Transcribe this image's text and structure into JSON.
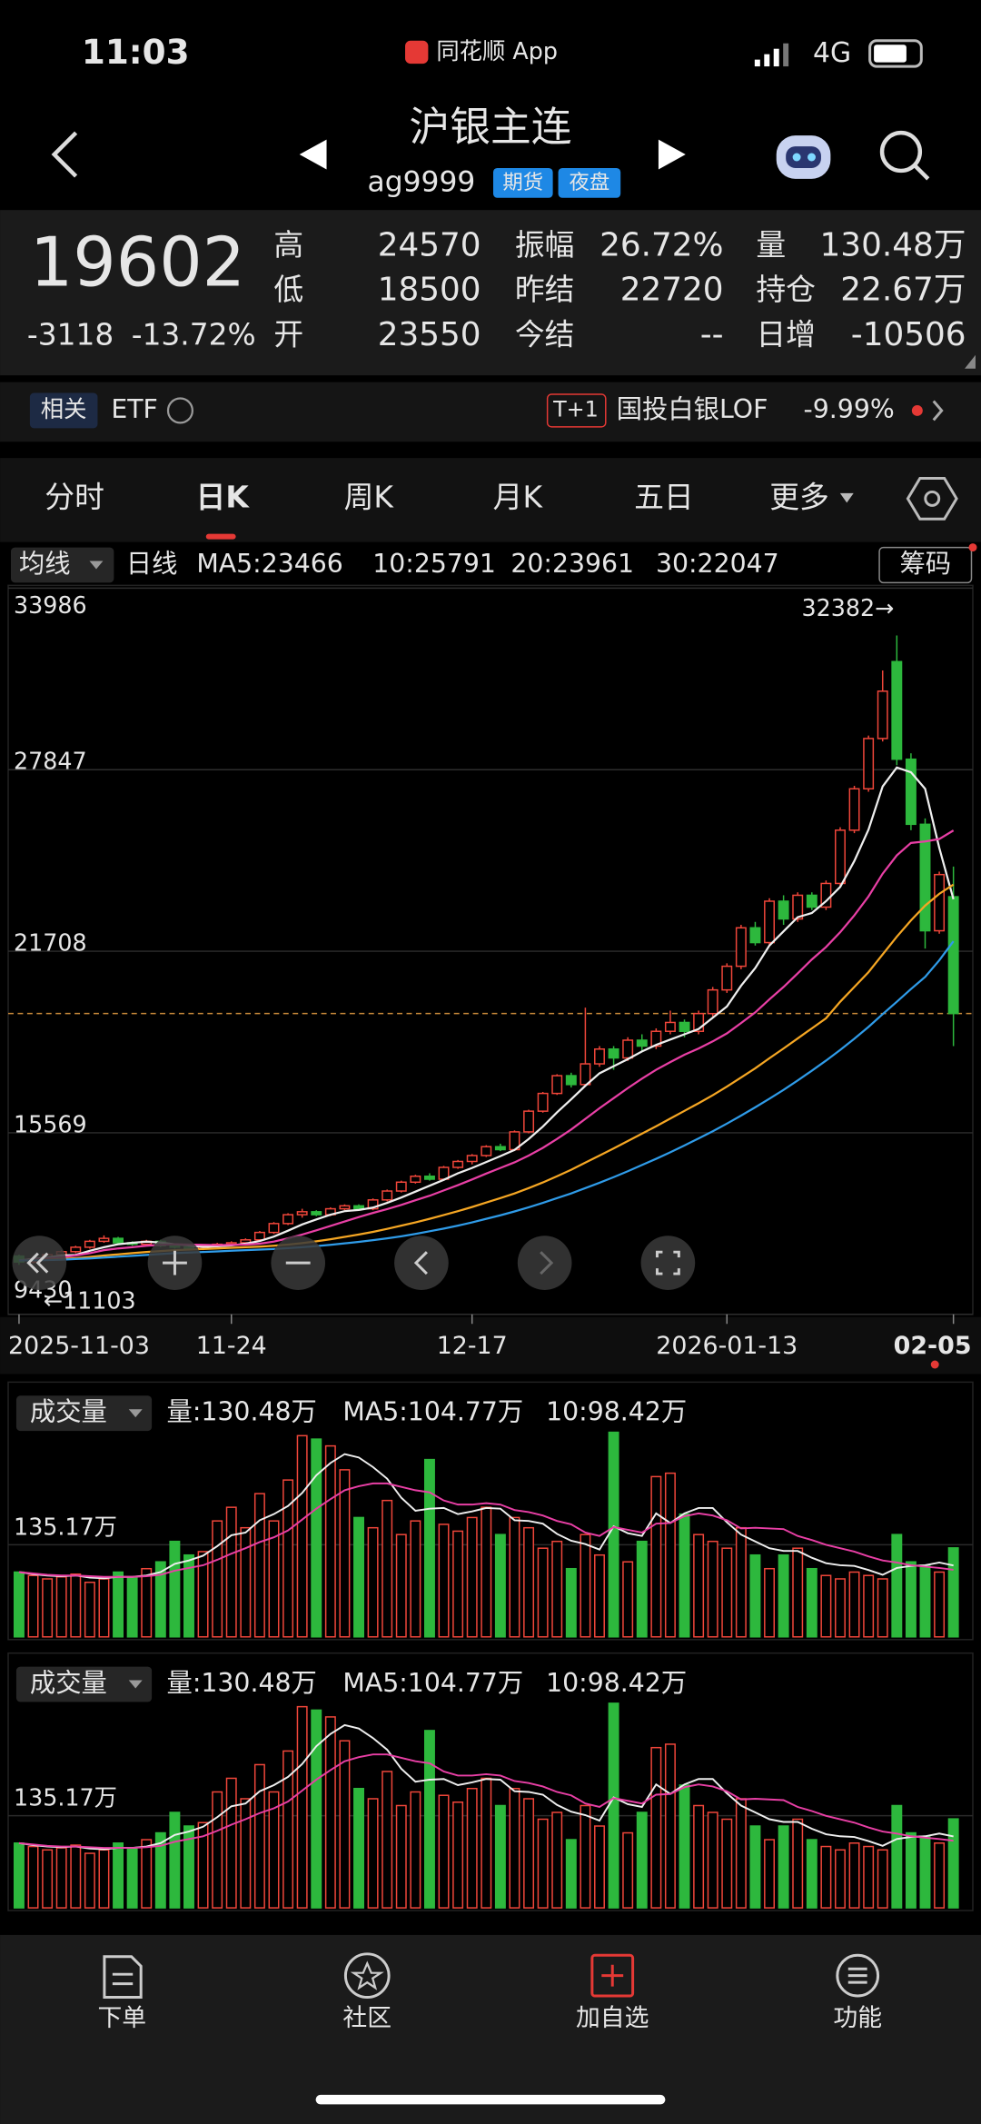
{
  "status": {
    "time": "11:03",
    "app": "同花顺 App",
    "network": "4G"
  },
  "header": {
    "title": "沪银主连",
    "code": "ag9999",
    "tags": [
      "期货",
      "夜盘"
    ]
  },
  "quote": {
    "price": "19602",
    "change": "-3118",
    "change_pct": "-13.72%",
    "fields": [
      {
        "label": "高",
        "value": "24570"
      },
      {
        "label": "低",
        "value": "18500"
      },
      {
        "label": "开",
        "value": "23550"
      },
      {
        "label": "振幅",
        "value": "26.72%"
      },
      {
        "label": "昨结",
        "value": "22720"
      },
      {
        "label": "今结",
        "value": "--"
      },
      {
        "label": "量",
        "value": "130.48万"
      },
      {
        "label": "持仓",
        "value": "22.67万"
      },
      {
        "label": "日增",
        "value": "-10506"
      }
    ]
  },
  "related": {
    "label": "相关",
    "etf": "ETF",
    "tag": "T+1",
    "fund": "国投白银LOF",
    "fund_change": "-9.99%"
  },
  "tabs": [
    "分时",
    "日K",
    "周K",
    "月K",
    "五日",
    "更多"
  ],
  "legend": {
    "ma_button": "均线",
    "period": "日线",
    "chips": "筹码"
  },
  "nav": [
    "下单",
    "社区",
    "加自选",
    "功能"
  ],
  "chart_data": [
    {
      "type": "candlestick",
      "up_color": "#f0463a",
      "down_color": "#2db83d",
      "categories": [
        "2025-11-03",
        null,
        null,
        null,
        null,
        null,
        null,
        null,
        null,
        null,
        null,
        null,
        null,
        null,
        null,
        "11-24",
        null,
        null,
        null,
        null,
        null,
        null,
        null,
        null,
        null,
        null,
        null,
        null,
        null,
        null,
        null,
        null,
        "12-17",
        null,
        null,
        null,
        null,
        null,
        null,
        null,
        null,
        null,
        null,
        null,
        null,
        null,
        null,
        null,
        null,
        null,
        "2026-01-13",
        null,
        null,
        null,
        null,
        null,
        null,
        null,
        null,
        null,
        null,
        null,
        null,
        null,
        null,
        null,
        "02-05"
      ],
      "open": [
        11400,
        11200,
        11300,
        11450,
        11550,
        11700,
        11900,
        12000,
        11850,
        11800,
        11900,
        11750,
        11700,
        11650,
        11750,
        11800,
        11850,
        11950,
        12200,
        12500,
        12800,
        12900,
        12800,
        13000,
        13100,
        13000,
        13300,
        13600,
        13900,
        14100,
        14000,
        14400,
        14600,
        14800,
        15100,
        15000,
        15600,
        16300,
        16900,
        17500,
        17200,
        17900,
        18400,
        18100,
        18700,
        18500,
        19000,
        19300,
        19000,
        19600,
        20400,
        21200,
        22500,
        22000,
        23400,
        22800,
        23600,
        23200,
        24000,
        25800,
        27200,
        28900,
        31500,
        28200,
        26000,
        22400,
        23550
      ],
      "high": [
        11450,
        11400,
        11500,
        11600,
        11750,
        11950,
        12100,
        12050,
        11900,
        11950,
        11950,
        11800,
        11750,
        11800,
        11850,
        11900,
        12000,
        12250,
        12550,
        12850,
        13000,
        12950,
        13050,
        13150,
        13150,
        13350,
        13650,
        13950,
        14150,
        14200,
        14450,
        14650,
        14850,
        15150,
        15200,
        15650,
        16350,
        16950,
        17550,
        17600,
        19800,
        18500,
        18500,
        18800,
        18900,
        19100,
        19700,
        19400,
        19700,
        20500,
        21300,
        22600,
        22700,
        23500,
        23600,
        23700,
        23700,
        24100,
        25900,
        27300,
        29000,
        31200,
        32382,
        28400,
        26200,
        24400,
        24570
      ],
      "low": [
        11103,
        11150,
        11250,
        11400,
        11500,
        11650,
        11850,
        11800,
        11750,
        11750,
        11700,
        11650,
        11600,
        11600,
        11700,
        11750,
        11800,
        11900,
        12150,
        12450,
        12700,
        12750,
        12750,
        12950,
        12950,
        12950,
        13250,
        13550,
        13850,
        13950,
        13950,
        14350,
        14500,
        14750,
        14950,
        14950,
        15550,
        16250,
        16850,
        17100,
        17150,
        17800,
        17700,
        18000,
        18300,
        18400,
        18900,
        18800,
        18900,
        19500,
        20300,
        21100,
        21900,
        21900,
        22600,
        22700,
        23100,
        23100,
        23900,
        25700,
        27100,
        28800,
        28000,
        25800,
        21800,
        22300,
        18500
      ],
      "close": [
        11200,
        11300,
        11450,
        11550,
        11700,
        11900,
        12000,
        11850,
        11800,
        11900,
        11750,
        11700,
        11650,
        11750,
        11800,
        11850,
        11950,
        12200,
        12500,
        12800,
        12900,
        12800,
        13000,
        13100,
        13000,
        13300,
        13600,
        13900,
        14100,
        14000,
        14400,
        14600,
        14800,
        15100,
        15000,
        15600,
        16300,
        16900,
        17500,
        17200,
        17900,
        18400,
        18100,
        18700,
        18500,
        19000,
        19300,
        19000,
        19600,
        20400,
        21200,
        22500,
        22000,
        23400,
        22800,
        23600,
        23200,
        24000,
        25800,
        27200,
        28900,
        30500,
        28200,
        26000,
        22400,
        24300,
        19602
      ],
      "series": [
        {
          "name": "MA5:23466",
          "color": "#eeeeee",
          "values": [
            11250,
            11300,
            11350,
            11420,
            11440,
            11580,
            11700,
            11800,
            11850,
            11890,
            11860,
            11800,
            11760,
            11710,
            11730,
            11760,
            11820,
            11910,
            12060,
            12260,
            12470,
            12640,
            12800,
            12920,
            12960,
            13040,
            13200,
            13380,
            13580,
            13780,
            13980,
            14200,
            14380,
            14580,
            14780,
            14990,
            15360,
            15780,
            16260,
            16700,
            17160,
            17580,
            17820,
            18060,
            18320,
            18540,
            18720,
            18900,
            19080,
            19460,
            19840,
            20540,
            21140,
            21900,
            22380,
            22860,
            23000,
            23400,
            23880,
            24760,
            25820,
            27280,
            27920,
            27760,
            27200,
            25200,
            23466
          ]
        },
        {
          "name": "10:25791",
          "color": "#e83fa5",
          "values": [
            11250,
            11280,
            11320,
            11360,
            11420,
            11500,
            11600,
            11660,
            11700,
            11750,
            11780,
            11800,
            11790,
            11780,
            11770,
            11780,
            11790,
            11820,
            11890,
            12000,
            12130,
            12270,
            12420,
            12570,
            12720,
            12860,
            12990,
            13130,
            13290,
            13440,
            13620,
            13800,
            13990,
            14190,
            14380,
            14570,
            14800,
            15060,
            15360,
            15680,
            16040,
            16400,
            16740,
            17080,
            17400,
            17700,
            17960,
            18210,
            18420,
            18660,
            18930,
            19280,
            19640,
            20080,
            20500,
            20960,
            21430,
            21850,
            22350,
            22920,
            23560,
            24330,
            24950,
            25370,
            25420,
            25500,
            25791
          ]
        },
        {
          "name": "20:23961",
          "color": "#f5a623",
          "values": [
            11250,
            11260,
            11280,
            11300,
            11330,
            11370,
            11420,
            11460,
            11500,
            11540,
            11570,
            11600,
            11620,
            11640,
            11660,
            11680,
            11700,
            11720,
            11750,
            11790,
            11840,
            11900,
            11970,
            12050,
            12130,
            12220,
            12320,
            12430,
            12540,
            12660,
            12790,
            12920,
            13060,
            13210,
            13360,
            13520,
            13700,
            13890,
            14100,
            14320,
            14560,
            14800,
            15040,
            15290,
            15540,
            15790,
            16050,
            16310,
            16570,
            16840,
            17130,
            17440,
            17750,
            18090,
            18420,
            18760,
            19100,
            19440,
            20000,
            20500,
            21000,
            21600,
            22200,
            22750,
            23250,
            23650,
            23961
          ]
        },
        {
          "name": "30:22047",
          "color": "#2f9be8",
          "values": [
            11250,
            11255,
            11265,
            11280,
            11300,
            11320,
            11350,
            11380,
            11410,
            11440,
            11470,
            11500,
            11520,
            11540,
            11560,
            11580,
            11600,
            11620,
            11640,
            11670,
            11700,
            11740,
            11780,
            11830,
            11880,
            11940,
            12000,
            12070,
            12150,
            12240,
            12330,
            12430,
            12540,
            12660,
            12780,
            12910,
            13050,
            13200,
            13360,
            13520,
            13700,
            13880,
            14070,
            14270,
            14480,
            14690,
            14910,
            15140,
            15380,
            15620,
            15880,
            16150,
            16430,
            16720,
            17020,
            17340,
            17670,
            18010,
            18370,
            18750,
            19150,
            19580,
            20000,
            20430,
            20840,
            21400,
            22047
          ]
        }
      ],
      "ylim": [
        9430,
        33986
      ],
      "yticks": [
        9430,
        15569,
        21708,
        27847,
        33986
      ],
      "price_line": 19602,
      "max_label": "32382→",
      "min_label": "←11103"
    },
    {
      "type": "bar",
      "title": "成交量",
      "label": "量:130.48万",
      "values": [
        95,
        90,
        85,
        88,
        92,
        80,
        85,
        95,
        88,
        100,
        110,
        140,
        120,
        125,
        170,
        190,
        160,
        210,
        170,
        230,
        295,
        290,
        280,
        245,
        175,
        160,
        200,
        150,
        170,
        260,
        165,
        155,
        175,
        190,
        150,
        175,
        160,
        130,
        140,
        100,
        150,
        120,
        300,
        110,
        140,
        235,
        240,
        180,
        150,
        140,
        130,
        160,
        120,
        100,
        120,
        130,
        100,
        90,
        85,
        95,
        90,
        85,
        150,
        110,
        105,
        95,
        130.48
      ],
      "series": [
        {
          "name": "MA5:104.77万",
          "color": "#eeeeee",
          "values": [
            95,
            92,
            90,
            89,
            90,
            87,
            86,
            88,
            88,
            90,
            95,
            107,
            112,
            119,
            133,
            149,
            153,
            171,
            180,
            192,
            211,
            237,
            255,
            268,
            263,
            249,
            232,
            204,
            185,
            188,
            189,
            180,
            184,
            189,
            188,
            171,
            170,
            166,
            151,
            141,
            136,
            128,
            162,
            152,
            148,
            181,
            167,
            181,
            189,
            189,
            168,
            150,
            140,
            130,
            126,
            126,
            116,
            108,
            105,
            104,
            98,
            91,
            101,
            104,
            105,
            109,
            104.77
          ]
        },
        {
          "name": "10:98.42万",
          "color": "#e83fa5",
          "values": [
            95,
            93,
            91,
            90,
            90,
            89,
            88,
            88,
            88,
            89,
            91,
            97,
            101,
            105,
            113,
            122,
            130,
            139,
            146,
            156,
            172,
            188,
            202,
            215,
            221,
            225,
            225,
            220,
            215,
            212,
            200,
            194,
            194,
            196,
            194,
            186,
            183,
            178,
            170,
            165,
            153,
            148,
            161,
            157,
            153,
            166,
            167,
            177,
            181,
            178,
            171,
            159,
            160,
            159,
            158,
            148,
            142,
            135,
            130,
            125,
            118,
            112,
            109,
            105,
            103,
            101,
            98.42
          ]
        }
      ],
      "ylim": [
        0,
        304
      ],
      "yticks": [
        {
          "value": 135.17,
          "label": "135.17万"
        }
      ]
    }
  ]
}
